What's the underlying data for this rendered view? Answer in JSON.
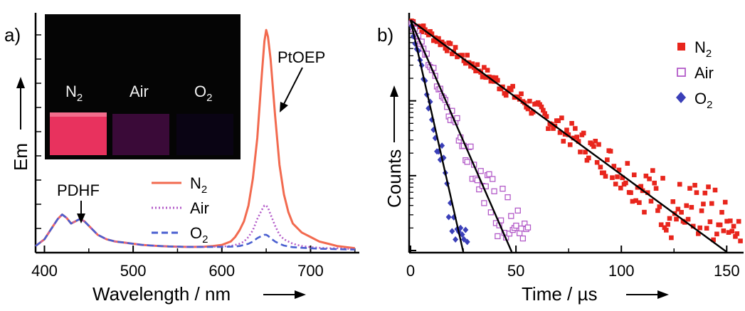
{
  "panels": {
    "a_label": "a)",
    "b_label": "b)"
  },
  "chart_data": [
    {
      "type": "line",
      "panel": "a",
      "xlabel": "Wavelength / nm",
      "ylabel": "Em",
      "xlim": [
        390,
        755
      ],
      "ylim": [
        0,
        1.05
      ],
      "x_ticks": [
        400,
        500,
        600,
        700
      ],
      "grid": false,
      "legend_position": "center-right",
      "annotations": {
        "peak_pdhf": "PDHF",
        "peak_ptoep": "PtOEP"
      },
      "inset": {
        "labels": [
          "N",
          "Air",
          "O"
        ],
        "subscripts": [
          "2",
          "",
          "2"
        ],
        "colors": [
          "#e8325e",
          "#3a0a38",
          "#0a0414"
        ]
      },
      "x": [
        390,
        400,
        410,
        415,
        420,
        425,
        430,
        435,
        440,
        445,
        450,
        455,
        460,
        470,
        480,
        490,
        500,
        510,
        520,
        530,
        540,
        550,
        560,
        570,
        580,
        590,
        600,
        610,
        615,
        620,
        625,
        630,
        635,
        640,
        645,
        648,
        650,
        652,
        655,
        660,
        665,
        670,
        675,
        680,
        690,
        700,
        710,
        720,
        730,
        740,
        750
      ],
      "series": [
        {
          "name": "N",
          "sub": "2",
          "color": "#f26a4f",
          "dash": "solid",
          "values": [
            0.02,
            0.05,
            0.11,
            0.14,
            0.16,
            0.145,
            0.12,
            0.13,
            0.14,
            0.13,
            0.11,
            0.09,
            0.07,
            0.05,
            0.04,
            0.035,
            0.03,
            0.025,
            0.022,
            0.02,
            0.018,
            0.017,
            0.016,
            0.016,
            0.017,
            0.02,
            0.025,
            0.04,
            0.06,
            0.09,
            0.13,
            0.2,
            0.32,
            0.5,
            0.78,
            0.93,
            0.98,
            0.95,
            0.85,
            0.6,
            0.38,
            0.25,
            0.17,
            0.12,
            0.08,
            0.06,
            0.04,
            0.03,
            0.02,
            0.015,
            0.01
          ]
        },
        {
          "name": "Air",
          "sub": "",
          "color": "#b35bc8",
          "dash": "dot",
          "values": [
            0.02,
            0.05,
            0.11,
            0.14,
            0.16,
            0.145,
            0.12,
            0.13,
            0.14,
            0.13,
            0.11,
            0.09,
            0.07,
            0.05,
            0.04,
            0.035,
            0.03,
            0.025,
            0.022,
            0.02,
            0.018,
            0.017,
            0.016,
            0.016,
            0.016,
            0.017,
            0.018,
            0.02,
            0.025,
            0.03,
            0.04,
            0.06,
            0.09,
            0.14,
            0.18,
            0.2,
            0.2,
            0.19,
            0.16,
            0.11,
            0.07,
            0.05,
            0.04,
            0.03,
            0.02,
            0.015,
            0.012,
            0.01,
            0.01,
            0.008,
            0.006
          ]
        },
        {
          "name": "O",
          "sub": "2",
          "color": "#4a5fd0",
          "dash": "dash",
          "values": [
            0.02,
            0.05,
            0.11,
            0.14,
            0.16,
            0.145,
            0.12,
            0.13,
            0.14,
            0.13,
            0.11,
            0.09,
            0.07,
            0.05,
            0.04,
            0.035,
            0.03,
            0.025,
            0.022,
            0.02,
            0.018,
            0.017,
            0.016,
            0.016,
            0.016,
            0.016,
            0.016,
            0.017,
            0.018,
            0.02,
            0.025,
            0.03,
            0.04,
            0.055,
            0.065,
            0.07,
            0.07,
            0.065,
            0.055,
            0.04,
            0.03,
            0.022,
            0.018,
            0.015,
            0.012,
            0.01,
            0.008,
            0.007,
            0.006,
            0.005,
            0.004
          ]
        }
      ]
    },
    {
      "type": "scatter",
      "panel": "b",
      "xlabel": "Time / µs",
      "ylabel": "Counts",
      "xlim": [
        0,
        158
      ],
      "x_ticks": [
        0,
        50,
        100,
        150
      ],
      "y_scale": "log",
      "ylim": [
        1,
        1500
      ],
      "grid": false,
      "legend_position": "top-right",
      "series": [
        {
          "name": "N",
          "sub": "2",
          "color": "#e8251c",
          "marker": "square-filled",
          "tau": 21.5,
          "x_max": 157,
          "fit_end": 150
        },
        {
          "name": "Air",
          "sub": "",
          "color": "#b35bc8",
          "marker": "square-open",
          "tau": 6.7,
          "x_max": 56,
          "fit_end": 48
        },
        {
          "name": "O",
          "sub": "2",
          "color": "#3a3fb8",
          "marker": "diamond-filled",
          "tau": 3.4,
          "x_max": 27,
          "fit_end": 25
        }
      ]
    }
  ]
}
